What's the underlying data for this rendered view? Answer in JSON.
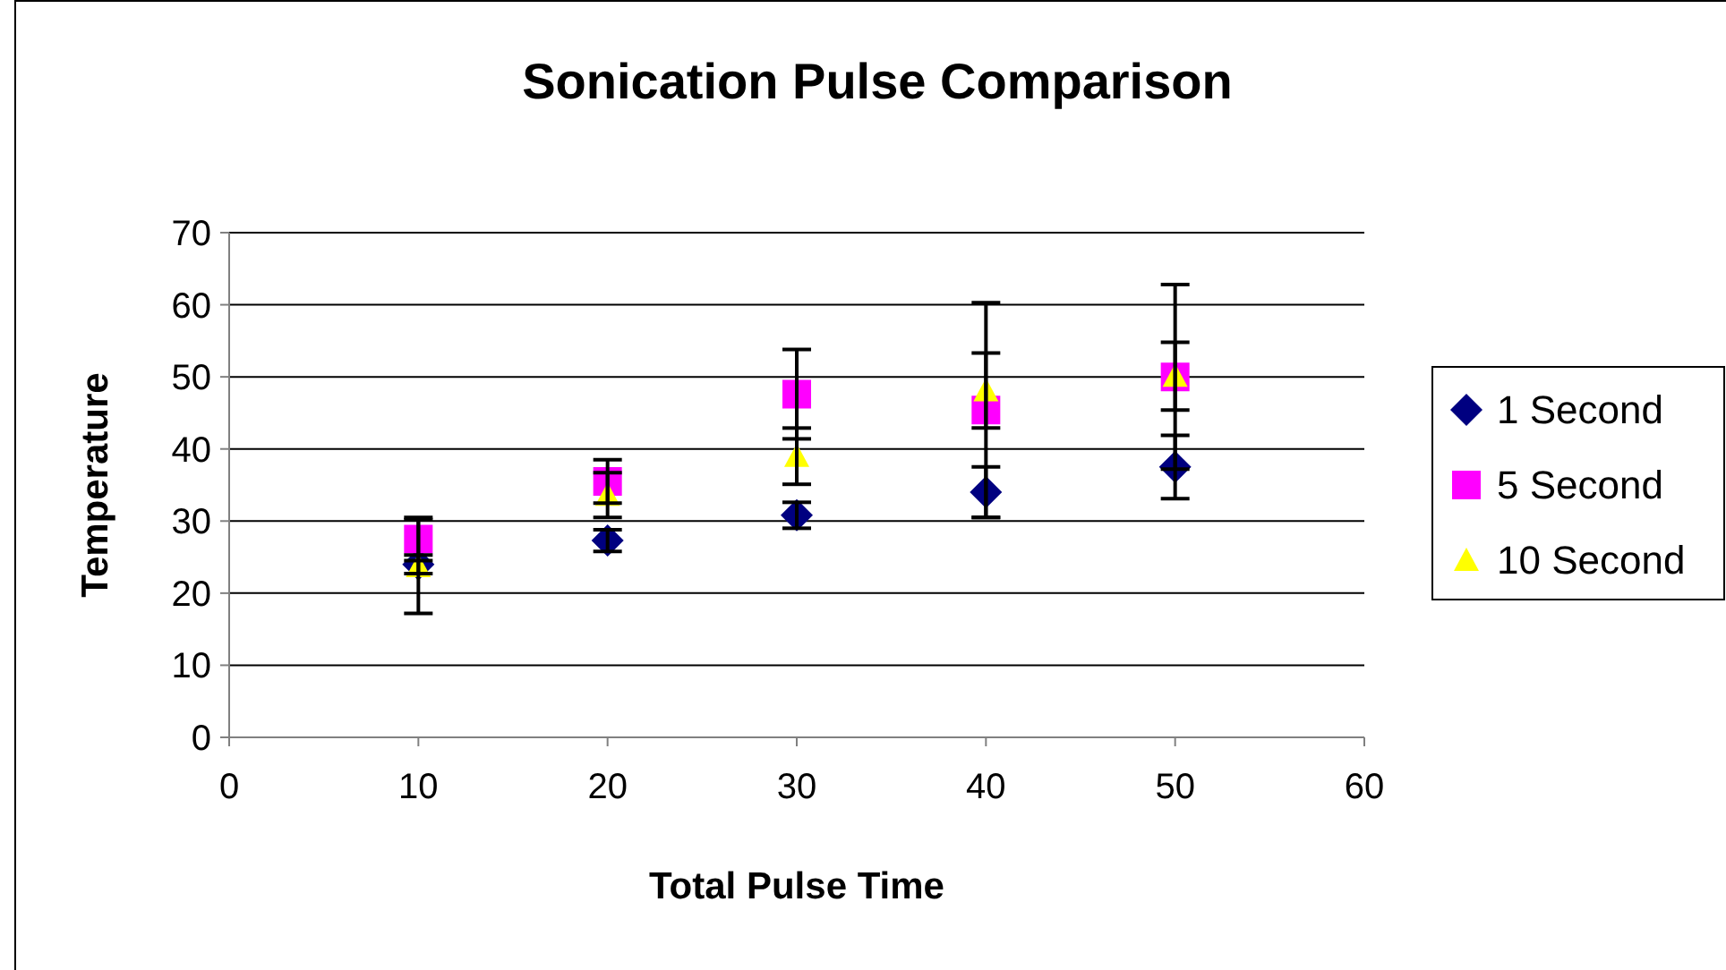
{
  "chart_data": {
    "type": "scatter",
    "title": "Sonication Pulse Comparison",
    "xlabel": "Total Pulse Time",
    "ylabel": "Temperature",
    "x": [
      10,
      20,
      30,
      40,
      50
    ],
    "series": [
      {
        "name": "1 Second",
        "color": "#000080",
        "marker": "diamond",
        "values": [
          24.0,
          27.3,
          30.8,
          34.0,
          37.5
        ],
        "errors": [
          1.3,
          1.5,
          1.8,
          3.5,
          4.4
        ]
      },
      {
        "name": "5 Second",
        "color": "#ff00ff",
        "marker": "square",
        "values": [
          27.5,
          35.5,
          47.6,
          45.4,
          50.0
        ],
        "errors": [
          3.0,
          3.0,
          6.2,
          14.9,
          12.8
        ]
      },
      {
        "name": "10 Second",
        "color": "#ffff00",
        "marker": "triangle",
        "values": [
          23.7,
          33.6,
          39.0,
          48.1,
          50.1
        ],
        "errors": [
          6.5,
          3.1,
          3.9,
          5.2,
          4.7
        ]
      }
    ],
    "xlim": [
      0,
      60
    ],
    "xticks": [
      0,
      10,
      20,
      30,
      40,
      50,
      60
    ],
    "ylim": [
      0,
      70
    ],
    "yticks": [
      0,
      10,
      20,
      30,
      40,
      50,
      60,
      70
    ],
    "grid": "y",
    "legend": "right"
  }
}
